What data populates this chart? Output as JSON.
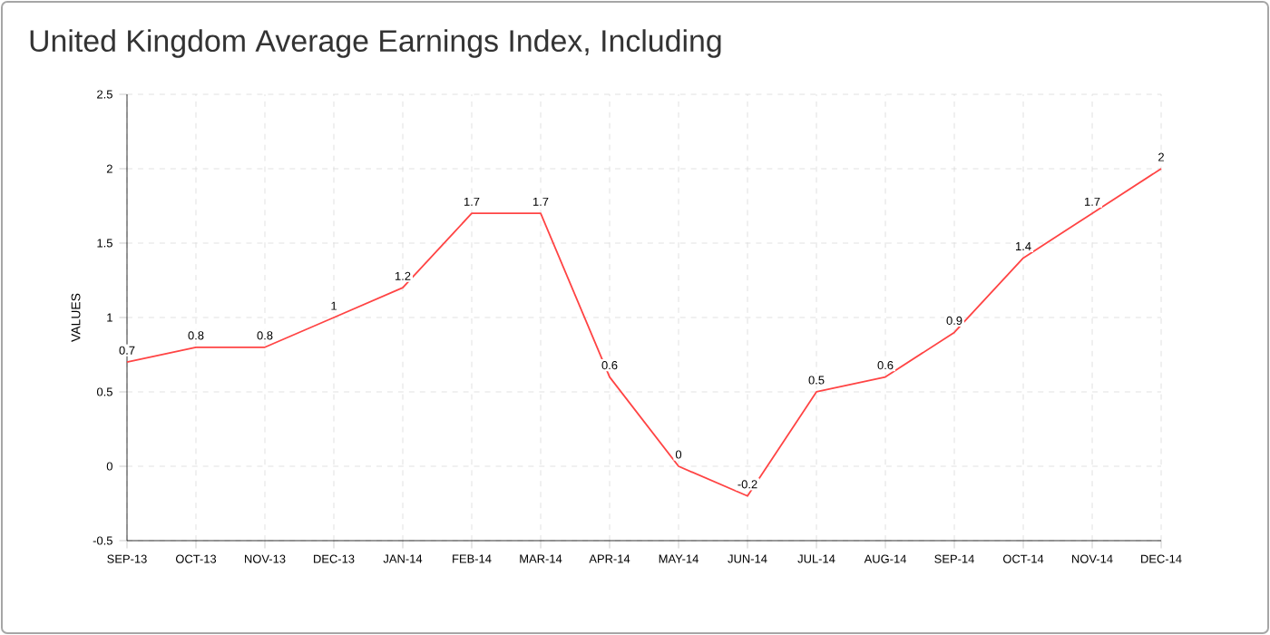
{
  "chart_data": {
    "type": "line",
    "title": "United Kingdom Average Earnings Index, Including",
    "ylabel": "VALUES",
    "categories": [
      "SEP-13",
      "OCT-13",
      "NOV-13",
      "DEC-13",
      "JAN-14",
      "FEB-14",
      "MAR-14",
      "APR-14",
      "MAY-14",
      "JUN-14",
      "JUL-14",
      "AUG-14",
      "SEP-14",
      "OCT-14",
      "NOV-14",
      "DEC-14"
    ],
    "values": [
      0.7,
      0.8,
      0.8,
      1,
      1.2,
      1.7,
      1.7,
      0.6,
      0,
      -0.2,
      0.5,
      0.6,
      0.9,
      1.4,
      1.7,
      2
    ],
    "color": "#ff4444",
    "ylim": [
      -0.5,
      2.5
    ],
    "yticks": [
      -0.5,
      0,
      0.5,
      1,
      1.5,
      2,
      2.5
    ],
    "grid": true,
    "data_labels": true,
    "marker": "none",
    "line_style": "solid"
  }
}
